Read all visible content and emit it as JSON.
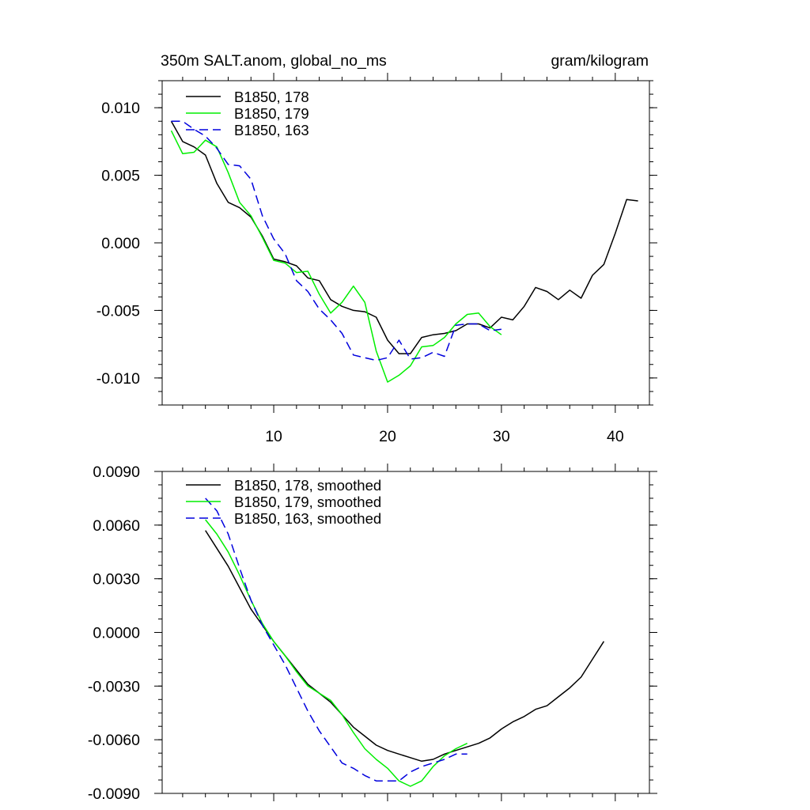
{
  "title_left": "350m SALT.anom, global_no_ms",
  "title_right": "gram/kilogram",
  "colors": {
    "s178": "#000000",
    "s179": "#00ee00",
    "s163": "#0000dd"
  },
  "chart_data": [
    {
      "type": "line",
      "title": "350m SALT.anom, global_no_ms",
      "units": "gram/kilogram",
      "xlim": [
        0.2,
        43
      ],
      "ylim": [
        -0.012,
        0.012
      ],
      "xticks": [
        10,
        20,
        30,
        40
      ],
      "xticklabels": [
        "10",
        "20",
        "30",
        "40"
      ],
      "yticks": [
        -0.01,
        -0.005,
        0.0,
        0.005,
        0.01
      ],
      "yticklabels": [
        "-0.010",
        "-0.005",
        "0.000",
        "0.005",
        "0.010"
      ],
      "legend": "top-left",
      "series": [
        {
          "name": "B1850, 178",
          "style": "solid",
          "color": "#000000",
          "x": [
            1,
            2,
            3,
            4,
            5,
            6,
            7,
            8,
            9,
            10,
            11,
            12,
            13,
            14,
            15,
            16,
            17,
            18,
            19,
            20,
            21,
            22,
            23,
            24,
            25,
            26,
            27,
            28,
            29,
            30,
            31,
            32,
            33,
            34,
            35,
            36,
            37,
            38,
            39,
            40,
            41,
            42
          ],
          "y": [
            0.009,
            0.0075,
            0.0071,
            0.0065,
            0.0044,
            0.003,
            0.0026,
            0.0019,
            0.0005,
            -0.0012,
            -0.0014,
            -0.0017,
            -0.0026,
            -0.0028,
            -0.0042,
            -0.0047,
            -0.005,
            -0.0051,
            -0.0055,
            -0.0072,
            -0.0082,
            -0.0082,
            -0.007,
            -0.0068,
            -0.0067,
            -0.0065,
            -0.006,
            -0.006,
            -0.0063,
            -0.0055,
            -0.0057,
            -0.0047,
            -0.0033,
            -0.0036,
            -0.0042,
            -0.0035,
            -0.0041,
            -0.0024,
            -0.0016,
            0.0007,
            0.0032,
            0.0031
          ]
        },
        {
          "name": "B1850, 179",
          "style": "solid",
          "color": "#00ee00",
          "x": [
            1,
            2,
            3,
            4,
            5,
            6,
            7,
            8,
            9,
            10,
            11,
            12,
            13,
            14,
            15,
            16,
            17,
            18,
            19,
            20,
            21,
            22,
            23,
            24,
            25,
            26,
            27,
            28,
            29,
            30
          ],
          "y": [
            0.0083,
            0.0066,
            0.0067,
            0.0076,
            0.0071,
            0.0052,
            0.003,
            0.002,
            0.0004,
            -0.0013,
            -0.0015,
            -0.0022,
            -0.0021,
            -0.0038,
            -0.0052,
            -0.0044,
            -0.0032,
            -0.0044,
            -0.008,
            -0.0103,
            -0.0098,
            -0.0091,
            -0.0077,
            -0.0076,
            -0.007,
            -0.006,
            -0.0053,
            -0.0052,
            -0.0062,
            -0.0068
          ]
        },
        {
          "name": "B1850, 163",
          "style": "dashed",
          "color": "#0000dd",
          "x": [
            1,
            2,
            3,
            4,
            5,
            6,
            7,
            8,
            9,
            10,
            11,
            12,
            13,
            14,
            15,
            16,
            17,
            18,
            19,
            20,
            21,
            22,
            23,
            24,
            25,
            26,
            27,
            28,
            29,
            30
          ],
          "y": [
            0.009,
            0.009,
            0.0084,
            0.0079,
            0.007,
            0.0058,
            0.0057,
            0.0047,
            0.002,
            0.0003,
            -0.0008,
            -0.0028,
            -0.0036,
            -0.0049,
            -0.0057,
            -0.0067,
            -0.0083,
            -0.0085,
            -0.0087,
            -0.0085,
            -0.0072,
            -0.0086,
            -0.0085,
            -0.0081,
            -0.0084,
            -0.0061,
            -0.006,
            -0.006,
            -0.0065,
            -0.0064
          ]
        }
      ]
    },
    {
      "type": "line",
      "title": "",
      "xlim": [
        0.2,
        43
      ],
      "ylim": [
        -0.009,
        0.009
      ],
      "xticks": [
        10,
        20,
        30,
        40
      ],
      "yticks": [
        -0.009,
        -0.006,
        -0.003,
        0.0,
        0.003,
        0.006,
        0.009
      ],
      "yticklabels": [
        "-0.0090",
        "-0.0060",
        "-0.0030",
        "0.0000",
        "0.0030",
        "0.0060",
        "0.0090"
      ],
      "legend": "top-left",
      "series": [
        {
          "name": "B1850, 178, smoothed",
          "style": "solid",
          "color": "#000000",
          "x": [
            4,
            5,
            6,
            7,
            8,
            9,
            10,
            11,
            12,
            13,
            14,
            15,
            16,
            17,
            18,
            19,
            20,
            21,
            22,
            23,
            24,
            25,
            26,
            27,
            28,
            29,
            30,
            31,
            32,
            33,
            34,
            35,
            36,
            37,
            38,
            39
          ],
          "y": [
            0.0057,
            0.0047,
            0.0037,
            0.0025,
            0.0013,
            0.0004,
            -0.0005,
            -0.0013,
            -0.0021,
            -0.0029,
            -0.0034,
            -0.0039,
            -0.0046,
            -0.0053,
            -0.0058,
            -0.0063,
            -0.0066,
            -0.0068,
            -0.007,
            -0.0072,
            -0.0071,
            -0.0068,
            -0.0066,
            -0.0064,
            -0.0062,
            -0.0059,
            -0.0054,
            -0.005,
            -0.0047,
            -0.0043,
            -0.0041,
            -0.0036,
            -0.0031,
            -0.0025,
            -0.0015,
            -0.0005
          ]
        },
        {
          "name": "B1850, 179, smoothed",
          "style": "solid",
          "color": "#00ee00",
          "x": [
            4,
            5,
            6,
            7,
            8,
            9,
            10,
            11,
            12,
            13,
            14,
            15,
            16,
            17,
            18,
            19,
            20,
            21,
            22,
            23,
            24,
            25,
            26,
            27
          ],
          "y": [
            0.0063,
            0.0055,
            0.0045,
            0.0032,
            0.0018,
            0.0005,
            -0.0005,
            -0.0013,
            -0.0022,
            -0.003,
            -0.0034,
            -0.0038,
            -0.0046,
            -0.0056,
            -0.0065,
            -0.0071,
            -0.0076,
            -0.0083,
            -0.0086,
            -0.0083,
            -0.0075,
            -0.0069,
            -0.0065,
            -0.0062
          ]
        },
        {
          "name": "B1850, 163, smoothed",
          "style": "dashed",
          "color": "#0000dd",
          "x": [
            4,
            5,
            6,
            7,
            8,
            9,
            10,
            11,
            12,
            13,
            14,
            15,
            16,
            17,
            18,
            19,
            20,
            21,
            22,
            23,
            24,
            25,
            26,
            27
          ],
          "y": [
            0.0075,
            0.0068,
            0.0055,
            0.0036,
            0.0018,
            0.0004,
            -0.0007,
            -0.0018,
            -0.0031,
            -0.0044,
            -0.0055,
            -0.0064,
            -0.0073,
            -0.0076,
            -0.008,
            -0.0083,
            -0.0083,
            -0.0083,
            -0.0078,
            -0.0075,
            -0.0073,
            -0.0071,
            -0.0068,
            -0.0068
          ]
        }
      ]
    }
  ]
}
